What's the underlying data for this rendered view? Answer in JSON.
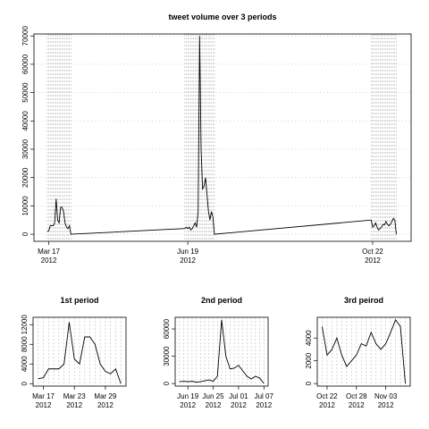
{
  "chart_data": [
    {
      "type": "line",
      "title": "tweet volume over 3 periods",
      "color": "#000000",
      "grid": "both",
      "x": [
        "2012-03-16",
        "2012-03-17",
        "2012-03-18",
        "2012-03-19",
        "2012-03-20",
        "2012-03-21",
        "2012-03-22",
        "2012-03-23",
        "2012-03-24",
        "2012-03-25",
        "2012-03-26",
        "2012-03-27",
        "2012-03-28",
        "2012-03-29",
        "2012-03-30",
        "2012-03-31",
        "2012-04-01",
        "2012-06-17",
        "2012-06-18",
        "2012-06-19",
        "2012-06-20",
        "2012-06-21",
        "2012-06-22",
        "2012-06-23",
        "2012-06-24",
        "2012-06-25",
        "2012-06-26",
        "2012-06-27",
        "2012-06-28",
        "2012-06-29",
        "2012-06-30",
        "2012-07-01",
        "2012-07-02",
        "2012-07-03",
        "2012-07-04",
        "2012-07-05",
        "2012-07-06",
        "2012-07-07",
        "2012-10-21",
        "2012-10-22",
        "2012-10-23",
        "2012-10-24",
        "2012-10-25",
        "2012-10-26",
        "2012-10-27",
        "2012-10-28",
        "2012-10-29",
        "2012-10-30",
        "2012-10-31",
        "2012-11-01",
        "2012-11-02",
        "2012-11-03",
        "2012-11-04",
        "2012-11-05",
        "2012-11-06",
        "2012-11-07"
      ],
      "values": [
        1000,
        1200,
        3000,
        3000,
        3000,
        4000,
        12500,
        5000,
        4000,
        9500,
        9500,
        8000,
        4000,
        2500,
        2000,
        3000,
        0,
        2000,
        2500,
        2000,
        2500,
        1500,
        2000,
        3000,
        4000,
        2500,
        8000,
        70000,
        30000,
        16000,
        17000,
        20000,
        14000,
        8000,
        5000,
        8000,
        6000,
        0,
        5000,
        2500,
        3000,
        4000,
        2500,
        1500,
        2000,
        2500,
        3500,
        3300,
        4500,
        3500,
        3000,
        3500,
        4500,
        5600,
        5000,
        0
      ],
      "xlim": [
        "2012-03-07",
        "2012-11-17"
      ],
      "xticks": [
        {
          "value": "2012-03-17",
          "label": "Mar 17\n2012"
        },
        {
          "value": "2012-06-19",
          "label": "Jun 19\n2012"
        },
        {
          "value": "2012-10-22",
          "label": "Oct 22\n2012"
        }
      ],
      "ylim": [
        -2500,
        70700
      ],
      "yticks": [
        0,
        10000,
        20000,
        30000,
        40000,
        50000,
        60000,
        70000
      ]
    },
    {
      "type": "line",
      "title": "1st period",
      "color": "#000000",
      "grid": "x",
      "x": [
        "2012-03-16",
        "2012-03-17",
        "2012-03-18",
        "2012-03-19",
        "2012-03-20",
        "2012-03-21",
        "2012-03-22",
        "2012-03-23",
        "2012-03-24",
        "2012-03-25",
        "2012-03-26",
        "2012-03-27",
        "2012-03-28",
        "2012-03-29",
        "2012-03-30",
        "2012-03-31",
        "2012-04-01"
      ],
      "values": [
        1000,
        1200,
        3000,
        3000,
        3000,
        4000,
        12500,
        5000,
        4000,
        9500,
        9500,
        8000,
        4000,
        2500,
        2000,
        3000,
        0
      ],
      "xlim": [
        "2012-03-15",
        "2012-04-02"
      ],
      "xticks": [
        {
          "value": "2012-03-17",
          "label": "Mar 17\n2012"
        },
        {
          "value": "2012-03-23",
          "label": "Mar 23\n2012"
        },
        {
          "value": "2012-03-29",
          "label": "Mar 29\n2012"
        }
      ],
      "ylim": [
        -500,
        13500
      ],
      "yticks": [
        0,
        4000,
        8000,
        12000
      ]
    },
    {
      "type": "line",
      "title": "2nd period",
      "color": "#000000",
      "grid": "x",
      "x": [
        "2012-06-17",
        "2012-06-18",
        "2012-06-19",
        "2012-06-20",
        "2012-06-21",
        "2012-06-22",
        "2012-06-23",
        "2012-06-24",
        "2012-06-25",
        "2012-06-26",
        "2012-06-27",
        "2012-06-28",
        "2012-06-29",
        "2012-06-30",
        "2012-07-01",
        "2012-07-02",
        "2012-07-03",
        "2012-07-04",
        "2012-07-05",
        "2012-07-06",
        "2012-07-07"
      ],
      "values": [
        2000,
        2500,
        2000,
        2500,
        1500,
        2000,
        3000,
        4000,
        2500,
        8000,
        70000,
        30000,
        16000,
        17000,
        20000,
        14000,
        8000,
        5000,
        8000,
        6000,
        0
      ],
      "xlim": [
        "2012-06-16",
        "2012-07-08"
      ],
      "xticks": [
        {
          "value": "2012-06-19",
          "label": "Jun 19\n2012"
        },
        {
          "value": "2012-06-25",
          "label": "Jun 25\n2012"
        },
        {
          "value": "2012-07-01",
          "label": "Jul 01\n2012"
        },
        {
          "value": "2012-07-07",
          "label": "Jul 07\n2012"
        }
      ],
      "ylim": [
        -2800,
        72800
      ],
      "yticks": [
        0,
        30000,
        60000
      ]
    },
    {
      "type": "line",
      "title": "3rd peirod",
      "color": "#000000",
      "grid": "x",
      "x": [
        "2012-10-21",
        "2012-10-22",
        "2012-10-23",
        "2012-10-24",
        "2012-10-25",
        "2012-10-26",
        "2012-10-27",
        "2012-10-28",
        "2012-10-29",
        "2012-10-30",
        "2012-10-31",
        "2012-11-01",
        "2012-11-02",
        "2012-11-03",
        "2012-11-04",
        "2012-11-05",
        "2012-11-06",
        "2012-11-07"
      ],
      "values": [
        5000,
        2500,
        3000,
        4000,
        2500,
        1500,
        2000,
        2500,
        3500,
        3300,
        4500,
        3500,
        3000,
        3500,
        4500,
        5600,
        5000,
        0
      ],
      "xlim": [
        "2012-10-20",
        "2012-11-08"
      ],
      "xticks": [
        {
          "value": "2012-10-22",
          "label": "Oct 22\n2012"
        },
        {
          "value": "2012-10-28",
          "label": "Oct 28\n2012"
        },
        {
          "value": "2012-11-03",
          "label": "Nov 03\n2012"
        }
      ],
      "ylim": [
        -220,
        5820
      ],
      "yticks": [
        0,
        2000,
        4000
      ]
    }
  ]
}
